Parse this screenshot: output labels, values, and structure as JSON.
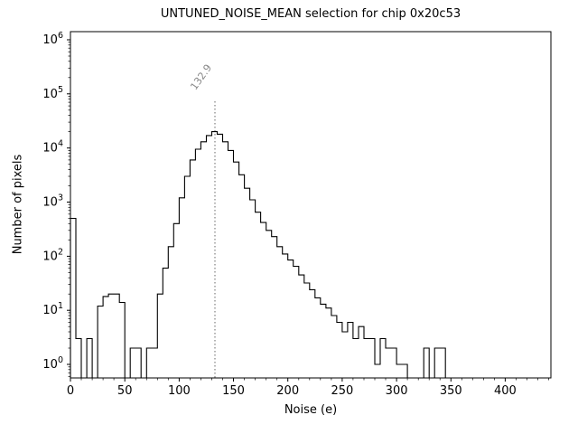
{
  "chart_data": {
    "type": "bar",
    "subtype": "step-histogram",
    "title": "UNTUNED_NOISE_MEAN selection for chip 0x20c53",
    "xlabel": "Noise (e)",
    "ylabel": "Number of pixels",
    "xlim": [
      0,
      442
    ],
    "y_scale": "log",
    "ylim_log10": [
      -0.25,
      6.15
    ],
    "x_major_ticks": [
      0,
      50,
      100,
      150,
      200,
      250,
      300,
      350,
      400
    ],
    "x_minor_step": 10,
    "y_decades": [
      0,
      1,
      2,
      3,
      4,
      5,
      6
    ],
    "y_tick_labels": [
      "10^0",
      "10^1",
      "10^2",
      "10^3",
      "10^4",
      "10^5",
      "10^6"
    ],
    "bin_start": 0,
    "bin_width": 5,
    "counts": [
      500,
      3,
      0,
      3,
      0,
      12,
      18,
      20,
      20,
      14,
      0,
      2,
      2,
      0,
      2,
      2,
      20,
      60,
      150,
      400,
      1200,
      3000,
      6000,
      9500,
      13000,
      17000,
      20000,
      18000,
      13000,
      9000,
      5500,
      3200,
      1800,
      1100,
      650,
      420,
      300,
      230,
      150,
      110,
      85,
      65,
      45,
      32,
      24,
      17,
      13,
      11,
      8,
      6,
      4,
      6,
      3,
      5,
      3,
      3,
      1,
      3,
      2,
      2,
      1,
      1,
      0,
      0,
      0,
      2,
      0,
      2,
      2
    ],
    "vline": {
      "x": 132.9,
      "label": "132.9",
      "color": "#808080"
    },
    "line_color": "#000000",
    "annotation_color": "#888888",
    "grid": false,
    "legend": null
  }
}
